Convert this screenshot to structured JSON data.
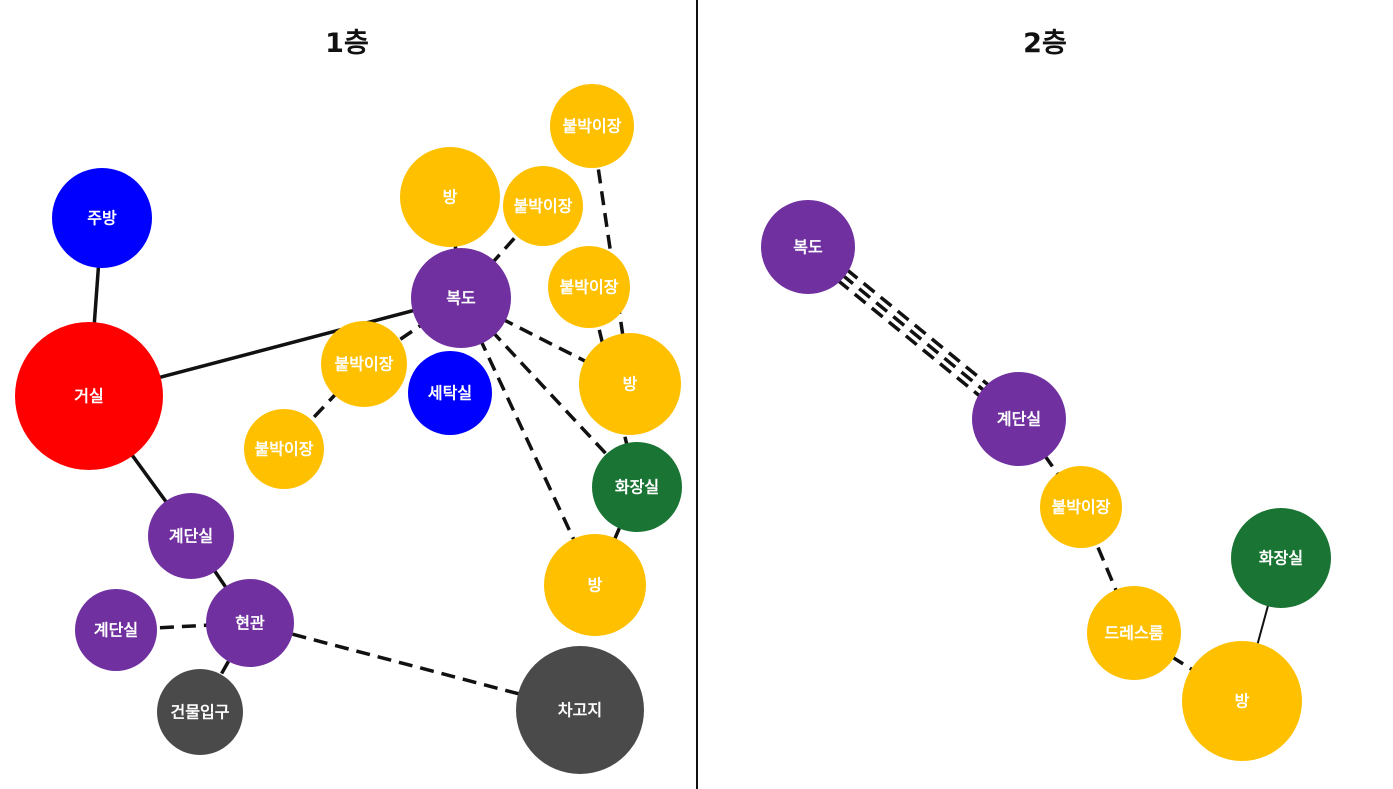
{
  "floors": {
    "floor1": {
      "title": "1층"
    },
    "floor2": {
      "title": "2층"
    }
  },
  "colors": {
    "living": "#ff0000",
    "service": "#0000ff",
    "circulation": "#7030a0",
    "private": "#ffc000",
    "bath": "#1a7433",
    "entry": "#4a4a4a",
    "line": "#111111"
  },
  "floor1_nodes": [
    {
      "id": "kitchen",
      "label": "주방",
      "color": "service"
    },
    {
      "id": "living",
      "label": "거실",
      "color": "living"
    },
    {
      "id": "stair_a",
      "label": "계단실",
      "color": "circulation"
    },
    {
      "id": "stair_b",
      "label": "계단실",
      "color": "circulation"
    },
    {
      "id": "entrance",
      "label": "현관",
      "color": "circulation"
    },
    {
      "id": "bldg_entry",
      "label": "건물입구",
      "color": "entry"
    },
    {
      "id": "garage",
      "label": "차고지",
      "color": "entry"
    },
    {
      "id": "closet_a",
      "label": "붙박이장",
      "color": "private"
    },
    {
      "id": "closet_b",
      "label": "붙박이장",
      "color": "private"
    },
    {
      "id": "laundry",
      "label": "세탁실",
      "color": "service"
    },
    {
      "id": "hall",
      "label": "복도",
      "color": "circulation"
    },
    {
      "id": "room_a",
      "label": "방",
      "color": "private"
    },
    {
      "id": "closet_c",
      "label": "붙박이장",
      "color": "private"
    },
    {
      "id": "closet_d",
      "label": "붙박이장",
      "color": "private"
    },
    {
      "id": "closet_e",
      "label": "붙박이장",
      "color": "private"
    },
    {
      "id": "room_b",
      "label": "방",
      "color": "private"
    },
    {
      "id": "bath",
      "label": "화장실",
      "color": "bath"
    },
    {
      "id": "room_c",
      "label": "방",
      "color": "private"
    }
  ],
  "floor2_nodes": [
    {
      "id": "hall2",
      "label": "복도",
      "color": "circulation"
    },
    {
      "id": "stair2",
      "label": "계단실",
      "color": "circulation"
    },
    {
      "id": "closet2",
      "label": "붙박이장",
      "color": "private"
    },
    {
      "id": "dress",
      "label": "드레스룸",
      "color": "private"
    },
    {
      "id": "bath2",
      "label": "화장실",
      "color": "bath"
    },
    {
      "id": "room2",
      "label": "방",
      "color": "private"
    }
  ],
  "floor1_edges": [
    {
      "from": "kitchen",
      "to": "living",
      "style": "solid"
    },
    {
      "from": "living",
      "to": "hall",
      "style": "solid"
    },
    {
      "from": "living",
      "to": "stair_a",
      "style": "solid"
    },
    {
      "from": "stair_a",
      "to": "entrance",
      "style": "solid"
    },
    {
      "from": "stair_b",
      "to": "entrance",
      "style": "dashed"
    },
    {
      "from": "entrance",
      "to": "bldg_entry",
      "style": "dashed"
    },
    {
      "from": "entrance",
      "to": "garage",
      "style": "dashed"
    },
    {
      "from": "closet_a",
      "to": "closet_b",
      "style": "dashed"
    },
    {
      "from": "closet_b",
      "to": "hall",
      "style": "dashed"
    },
    {
      "from": "hall",
      "to": "room_a",
      "style": "dashed"
    },
    {
      "from": "hall",
      "to": "closet_c",
      "style": "dashed"
    },
    {
      "from": "hall",
      "to": "room_b",
      "style": "dashed"
    },
    {
      "from": "hall",
      "to": "bath",
      "style": "dashed"
    },
    {
      "from": "hall",
      "to": "room_c",
      "style": "dashed"
    },
    {
      "from": "closet_d",
      "to": "room_b",
      "style": "dashed"
    },
    {
      "from": "closet_e",
      "to": "bath",
      "style": "dashed"
    },
    {
      "from": "bath",
      "to": "room_c",
      "style": "dashed"
    }
  ],
  "floor2_edges": [
    {
      "from": "hall2",
      "to": "stair2",
      "style": "dashed"
    },
    {
      "from": "hall2",
      "to": "stair2",
      "style": "dashed"
    },
    {
      "from": "hall2",
      "to": "stair2",
      "style": "dashed"
    },
    {
      "from": "stair2",
      "to": "closet2",
      "style": "dashed"
    },
    {
      "from": "closet2",
      "to": "dress",
      "style": "dashed"
    },
    {
      "from": "dress",
      "to": "room2",
      "style": "dashed"
    },
    {
      "from": "bath2",
      "to": "room2",
      "style": "solid"
    }
  ]
}
